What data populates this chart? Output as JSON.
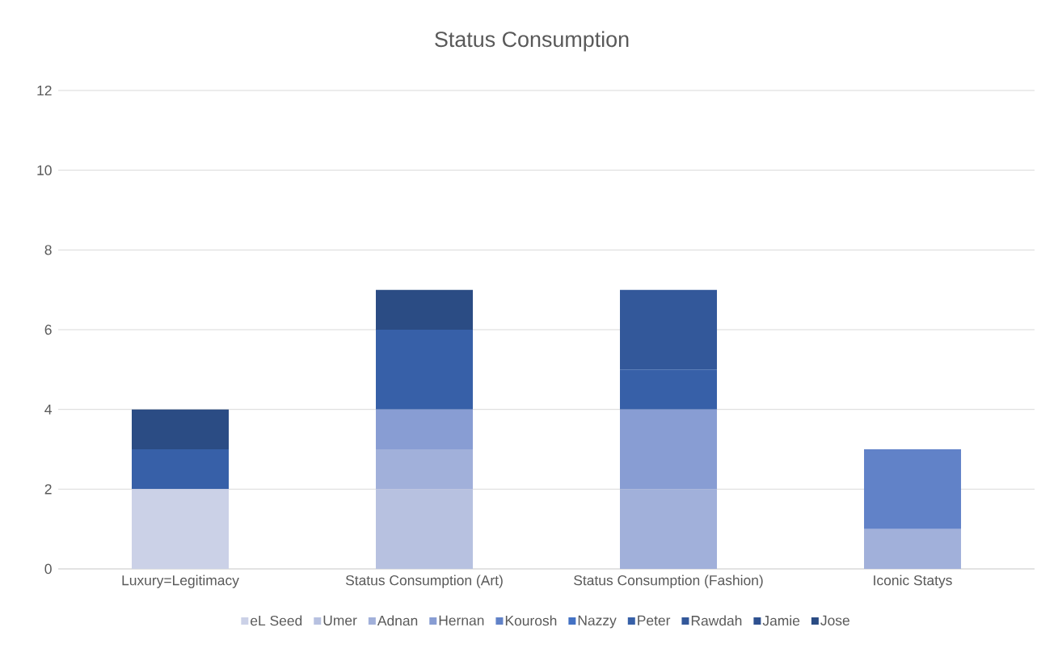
{
  "chart_data": {
    "type": "bar",
    "title": "Status Consumption",
    "stacked": true,
    "categories": [
      "Luxury=Legitimacy",
      "Status Consumption (Art)",
      "Status Consumption (Fashion)",
      "Iconic Statys"
    ],
    "series": [
      {
        "name": "eL Seed",
        "color": "#cbd1e7",
        "values": [
          2,
          0,
          0,
          0
        ]
      },
      {
        "name": "Umer",
        "color": "#b7c1e0",
        "values": [
          0,
          2,
          0,
          0
        ]
      },
      {
        "name": "Adnan",
        "color": "#a1b0da",
        "values": [
          0,
          1,
          2,
          1
        ]
      },
      {
        "name": "Hernan",
        "color": "#889dd3",
        "values": [
          0,
          1,
          2,
          0
        ]
      },
      {
        "name": "Kourosh",
        "color": "#6182c8",
        "values": [
          0,
          0,
          0,
          2
        ]
      },
      {
        "name": "Nazzy",
        "color": "#4472c4",
        "values": [
          0,
          0,
          0,
          0
        ]
      },
      {
        "name": "Peter",
        "color": "#3760a8",
        "values": [
          1,
          2,
          1,
          0
        ]
      },
      {
        "name": "Rawdah",
        "color": "#33589a",
        "values": [
          0,
          0,
          2,
          0
        ]
      },
      {
        "name": "Jamie",
        "color": "#2f5190",
        "values": [
          0,
          0,
          0,
          0
        ]
      },
      {
        "name": "Jose",
        "color": "#2b4c84",
        "values": [
          1,
          1,
          0,
          0
        ]
      }
    ],
    "ylim": [
      0,
      12
    ],
    "yticks": [
      0,
      2,
      4,
      6,
      8,
      10,
      12
    ],
    "grid": "y",
    "legend": "bottom"
  }
}
